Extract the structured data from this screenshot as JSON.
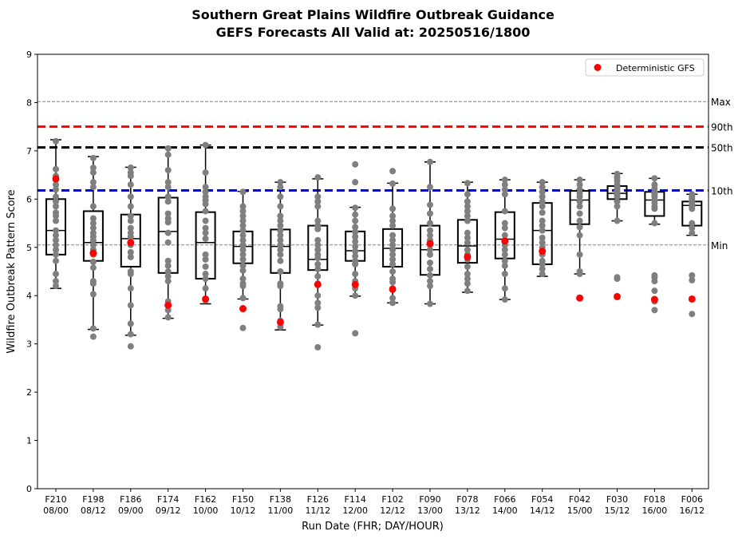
{
  "chart_data": {
    "type": "box",
    "title": "Southern Great Plains Wildfire Outbreak Guidance",
    "subtitle": "GEFS Forecasts All Valid at: 20250516/1800",
    "xlabel": "Run Date (FHR; DAY/HOUR)",
    "ylabel": "Wildfire Outbreak Pattern Score",
    "ylim": [
      0,
      9
    ],
    "yticks": [
      "0",
      "1",
      "2",
      "3",
      "4",
      "5",
      "6",
      "7",
      "8",
      "9"
    ],
    "grid": false,
    "legend": {
      "placement": "top-right",
      "entries": [
        {
          "label": "Deterministic GFS",
          "color": "#ff0000"
        }
      ]
    },
    "categories": [
      "F210\n08/00",
      "F198\n08/12",
      "F186\n09/00",
      "F174\n09/12",
      "F162\n10/00",
      "F150\n10/12",
      "F138\n11/00",
      "F126\n11/12",
      "F114\n12/00",
      "F102\n12/12",
      "F090\n13/00",
      "F078\n13/12",
      "F066\n14/00",
      "F054\n14/12",
      "F042\n15/00",
      "F030\n15/12",
      "F018\n16/00",
      "F006\n16/12"
    ],
    "reference_lines": [
      {
        "label": "Max",
        "value": 8.02,
        "style": "dashed",
        "color": "#808080"
      },
      {
        "label": "90th",
        "value": 7.5,
        "style": "dashed-bold",
        "color": "#ff0000"
      },
      {
        "label": "50th",
        "value": 7.07,
        "style": "dashed-bold",
        "color": "#000000"
      },
      {
        "label": "10th",
        "value": 6.18,
        "style": "dashed-bold",
        "color": "#0000ff"
      },
      {
        "label": "Min",
        "value": 5.05,
        "style": "dashed",
        "color": "#808080"
      }
    ],
    "boxes": [
      {
        "whisker_low": 4.15,
        "q1": 4.85,
        "median": 5.35,
        "q3": 6.0,
        "whisker_high": 7.23
      },
      {
        "whisker_low": 3.3,
        "q1": 4.72,
        "median": 5.1,
        "q3": 5.75,
        "whisker_high": 6.88
      },
      {
        "whisker_low": 3.18,
        "q1": 4.6,
        "median": 5.18,
        "q3": 5.68,
        "whisker_high": 6.66
      },
      {
        "whisker_low": 3.53,
        "q1": 4.47,
        "median": 5.33,
        "q3": 6.03,
        "whisker_high": 7.06
      },
      {
        "whisker_low": 3.83,
        "q1": 4.35,
        "median": 5.1,
        "q3": 5.73,
        "whisker_high": 7.12
      },
      {
        "whisker_low": 3.93,
        "q1": 4.67,
        "median": 5.02,
        "q3": 5.33,
        "whisker_high": 6.16
      },
      {
        "whisker_low": 3.29,
        "q1": 4.47,
        "median": 5.02,
        "q3": 5.37,
        "whisker_high": 6.35
      },
      {
        "whisker_low": 3.39,
        "q1": 4.53,
        "median": 4.75,
        "q3": 5.45,
        "whisker_high": 6.42
      },
      {
        "whisker_low": 3.99,
        "q1": 4.72,
        "median": 4.93,
        "q3": 5.33,
        "whisker_high": 5.83
      },
      {
        "whisker_low": 3.85,
        "q1": 4.6,
        "median": 4.98,
        "q3": 5.38,
        "whisker_high": 6.33
      },
      {
        "whisker_low": 3.83,
        "q1": 4.43,
        "median": 4.95,
        "q3": 5.45,
        "whisker_high": 6.77
      },
      {
        "whisker_low": 4.07,
        "q1": 4.68,
        "median": 5.03,
        "q3": 5.57,
        "whisker_high": 6.35
      },
      {
        "whisker_low": 3.92,
        "q1": 4.77,
        "median": 5.17,
        "q3": 5.73,
        "whisker_high": 6.4
      },
      {
        "whisker_low": 4.4,
        "q1": 4.65,
        "median": 5.35,
        "q3": 5.92,
        "whisker_high": 6.35
      },
      {
        "whisker_low": 4.45,
        "q1": 5.48,
        "median": 5.98,
        "q3": 6.17,
        "whisker_high": 6.4
      },
      {
        "whisker_low": 5.55,
        "q1": 6.0,
        "median": 6.12,
        "q3": 6.27,
        "whisker_high": 6.53
      },
      {
        "whisker_low": 5.48,
        "q1": 5.65,
        "median": 5.98,
        "q3": 6.15,
        "whisker_high": 6.43
      },
      {
        "whisker_low": 5.25,
        "q1": 5.45,
        "median": 5.87,
        "q3": 5.95,
        "whisker_high": 6.1
      }
    ],
    "members": [
      [
        7.2,
        6.62,
        6.48,
        6.4,
        6.3,
        6.2,
        6.05,
        5.95,
        5.85,
        5.72,
        5.65,
        5.55,
        5.35,
        5.25,
        5.15,
        5.05,
        4.95,
        4.85,
        4.72,
        4.45,
        4.3,
        4.2
      ],
      [
        6.85,
        6.65,
        6.55,
        6.35,
        6.25,
        5.85,
        5.6,
        5.5,
        5.4,
        5.3,
        5.22,
        5.15,
        5.05,
        4.95,
        4.85,
        4.7,
        4.58,
        4.3,
        4.25,
        4.03,
        3.32,
        3.15
      ],
      [
        6.65,
        6.55,
        6.48,
        6.3,
        6.05,
        5.85,
        5.65,
        5.55,
        5.4,
        5.3,
        5.22,
        5.05,
        4.9,
        4.8,
        4.5,
        4.45,
        4.15,
        3.8,
        3.42,
        3.2,
        2.95
      ],
      [
        7.05,
        6.92,
        6.6,
        6.35,
        6.25,
        6.05,
        5.95,
        5.7,
        5.6,
        5.52,
        5.3,
        5.1,
        4.72,
        4.62,
        4.5,
        4.4,
        4.3,
        3.88,
        3.7,
        3.55
      ],
      [
        7.12,
        6.55,
        6.25,
        6.15,
        6.05,
        5.98,
        5.9,
        5.75,
        5.55,
        5.4,
        5.3,
        5.18,
        4.85,
        4.75,
        4.6,
        4.45,
        4.35,
        4.15,
        3.9
      ],
      [
        6.15,
        5.85,
        5.75,
        5.65,
        5.55,
        5.45,
        5.35,
        5.25,
        5.15,
        5.05,
        4.95,
        4.85,
        4.75,
        4.62,
        4.52,
        4.35,
        4.25,
        4.2,
        3.95,
        3.33
      ],
      [
        6.35,
        6.25,
        6.05,
        5.85,
        5.65,
        5.55,
        5.45,
        5.35,
        5.25,
        5.15,
        5.05,
        4.95,
        4.85,
        4.72,
        4.5,
        4.25,
        4.2,
        3.78,
        3.72,
        3.48,
        3.35
      ],
      [
        6.45,
        6.05,
        5.95,
        5.85,
        5.55,
        5.45,
        5.38,
        5.15,
        5.05,
        4.95,
        4.85,
        4.78,
        4.65,
        4.55,
        4.4,
        4.25,
        4.0,
        3.85,
        3.75,
        3.4,
        2.93
      ],
      [
        6.72,
        6.35,
        5.82,
        5.68,
        5.55,
        5.42,
        5.32,
        5.22,
        5.12,
        5.02,
        4.92,
        4.82,
        4.72,
        4.65,
        4.45,
        4.3,
        4.15,
        4.0,
        3.22
      ],
      [
        6.58,
        6.32,
        5.8,
        5.65,
        5.55,
        5.45,
        5.25,
        5.15,
        5.05,
        4.95,
        4.85,
        4.75,
        4.65,
        4.5,
        4.35,
        4.28,
        4.15,
        3.95,
        3.85
      ],
      [
        6.77,
        6.25,
        5.88,
        5.7,
        5.5,
        5.35,
        5.25,
        5.15,
        5.05,
        4.95,
        4.85,
        4.68,
        4.55,
        4.42,
        4.3,
        4.2,
        3.83
      ],
      [
        6.33,
        6.1,
        5.95,
        5.85,
        5.75,
        5.65,
        5.55,
        5.3,
        5.2,
        5.1,
        4.95,
        4.85,
        4.75,
        4.6,
        4.45,
        4.35,
        4.25,
        4.1
      ],
      [
        6.4,
        6.3,
        6.2,
        6.1,
        5.75,
        5.5,
        5.4,
        5.25,
        5.15,
        5.05,
        4.95,
        4.85,
        4.72,
        4.62,
        4.45,
        4.15,
        3.92
      ],
      [
        6.35,
        6.25,
        6.15,
        6.05,
        5.95,
        5.85,
        5.72,
        5.55,
        5.45,
        5.35,
        5.2,
        5.1,
        5.0,
        4.85,
        4.72,
        4.65,
        4.55,
        4.45
      ],
      [
        6.4,
        6.3,
        6.2,
        6.12,
        6.05,
        5.95,
        5.85,
        5.7,
        5.55,
        5.42,
        5.25,
        4.85,
        4.5,
        4.45
      ],
      [
        6.52,
        6.45,
        6.38,
        6.3,
        6.25,
        6.2,
        6.15,
        6.1,
        6.05,
        5.95,
        5.85,
        5.55,
        4.38,
        4.35
      ],
      [
        6.43,
        6.3,
        6.22,
        6.15,
        6.1,
        6.05,
        5.98,
        5.92,
        5.85,
        5.8,
        5.5,
        4.42,
        4.38,
        4.3,
        4.1,
        3.88,
        3.7
      ],
      [
        6.1,
        6.05,
        6.0,
        5.95,
        5.9,
        5.85,
        5.8,
        5.5,
        5.4,
        5.3,
        4.42,
        4.32,
        3.62
      ]
    ],
    "deterministic_gfs": [
      6.42,
      4.88,
      5.1,
      3.8,
      3.93,
      3.73,
      3.45,
      4.23,
      4.23,
      4.13,
      5.08,
      4.8,
      5.13,
      4.92,
      3.95,
      3.98,
      3.92,
      3.93
    ],
    "colors": {
      "members": "#7f7f7f",
      "deterministic": "#ff0000",
      "box": "#000000"
    }
  }
}
